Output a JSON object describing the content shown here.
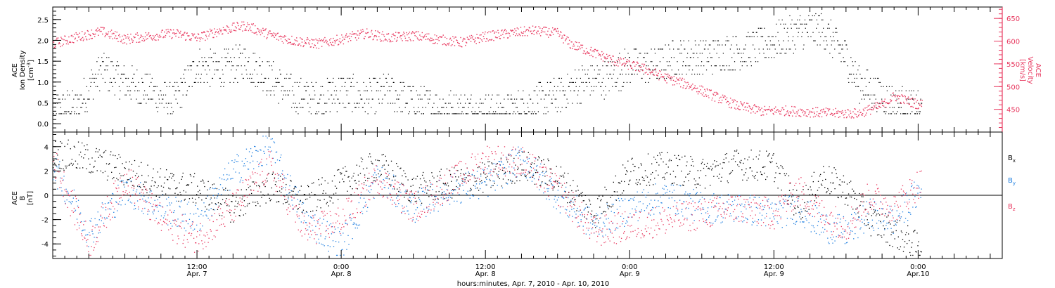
{
  "xlabel": "hours:minutes, Apr.  7, 2010 - Apr. 10, 2010",
  "x_ticks": [
    {
      "t": 12,
      "lines": [
        "12:00",
        "Apr. 7"
      ]
    },
    {
      "t": 24,
      "lines": [
        "0:00",
        "Apr. 8"
      ]
    },
    {
      "t": 36,
      "lines": [
        "12:00",
        "Apr. 8"
      ]
    },
    {
      "t": 48,
      "lines": [
        "0:00",
        "Apr. 9"
      ]
    },
    {
      "t": 60,
      "lines": [
        "12:00",
        "Apr. 9"
      ]
    },
    {
      "t": 72,
      "lines": [
        "0:00",
        "Apr.10"
      ]
    }
  ],
  "colors": {
    "black": "#000000",
    "blue": "#1f7fe0",
    "red": "#e8385f"
  },
  "chart_data": [
    {
      "type": "scatter",
      "title": "",
      "xlim": [
        "2010-04-07 00:00",
        "2010-04-10 07:00"
      ],
      "ylabel_left": [
        "ACE",
        "Ion Density",
        "[cm-3]"
      ],
      "ylabel_right": [
        "ACE",
        "Velocity",
        "[km/s]"
      ],
      "ylim_left": [
        -0.2,
        2.8
      ],
      "yticks_left": [
        0.0,
        0.5,
        1.0,
        1.5,
        2.0,
        2.5
      ],
      "ylim_right": [
        400,
        675
      ],
      "yticks_right": [
        450,
        500,
        550,
        600,
        650
      ],
      "series": [
        {
          "axis": "left",
          "color": "#000000",
          "values_approx": [
            [
              0,
              0.35
            ],
            [
              2,
              0.4
            ],
            [
              4,
              1.3
            ],
            [
              6,
              1.0
            ],
            [
              8,
              0.8
            ],
            [
              10,
              0.5
            ],
            [
              12,
              1.4
            ],
            [
              14,
              1.3
            ],
            [
              16,
              1.5
            ],
            [
              18,
              1.1
            ],
            [
              20,
              0.7
            ],
            [
              22,
              0.6
            ],
            [
              24,
              0.8
            ],
            [
              26,
              0.6
            ],
            [
              28,
              0.8
            ],
            [
              30,
              0.5
            ],
            [
              32,
              0.4
            ],
            [
              34,
              0.35
            ],
            [
              36,
              0.3
            ],
            [
              38,
              0.3
            ],
            [
              40,
              0.5
            ],
            [
              42,
              0.7
            ],
            [
              44,
              1.0
            ],
            [
              46,
              1.1
            ],
            [
              48,
              1.4
            ],
            [
              50,
              1.4
            ],
            [
              52,
              1.6
            ],
            [
              54,
              1.6
            ],
            [
              56,
              1.7
            ],
            [
              58,
              1.8
            ],
            [
              60,
              2.0
            ],
            [
              62,
              2.2
            ],
            [
              64,
              2.3
            ],
            [
              66,
              1.6
            ],
            [
              67,
              1.0
            ],
            [
              68,
              0.8
            ],
            [
              70,
              0.5
            ],
            [
              72,
              0.35
            ]
          ]
        },
        {
          "axis": "right",
          "color": "#e8385f",
          "values_approx": [
            [
              0,
              595
            ],
            [
              2,
              610
            ],
            [
              4,
              622
            ],
            [
              6,
              605
            ],
            [
              8,
              612
            ],
            [
              10,
              618
            ],
            [
              12,
              608
            ],
            [
              14,
              625
            ],
            [
              16,
              635
            ],
            [
              18,
              615
            ],
            [
              20,
              602
            ],
            [
              22,
              595
            ],
            [
              24,
              605
            ],
            [
              26,
              618
            ],
            [
              28,
              608
            ],
            [
              30,
              613
            ],
            [
              32,
              605
            ],
            [
              34,
              598
            ],
            [
              36,
              611
            ],
            [
              38,
              618
            ],
            [
              40,
              624
            ],
            [
              42,
              618
            ],
            [
              43,
              595
            ],
            [
              45,
              575
            ],
            [
              47,
              555
            ],
            [
              49,
              542
            ],
            [
              51,
              520
            ],
            [
              53,
              503
            ],
            [
              55,
              480
            ],
            [
              57,
              458
            ],
            [
              59,
              447
            ],
            [
              61,
              448
            ],
            [
              63,
              445
            ],
            [
              65,
              442
            ],
            [
              67,
              442
            ],
            [
              69,
              460
            ],
            [
              70,
              480
            ],
            [
              71,
              470
            ],
            [
              72,
              462
            ]
          ]
        }
      ]
    },
    {
      "type": "scatter",
      "title": "",
      "xlim": [
        "2010-04-07 00:00",
        "2010-04-10 07:00"
      ],
      "ylabel": [
        "ACE",
        "B",
        "[nT]"
      ],
      "ylim": [
        -5.2,
        5.2
      ],
      "yticks": [
        -4,
        -2,
        0,
        2,
        4
      ],
      "zero_line": true,
      "series": [
        {
          "name": "Bx",
          "color": "#000000",
          "values_approx": [
            [
              0,
              3.5
            ],
            [
              3,
              3.0
            ],
            [
              6,
              2.0
            ],
            [
              9,
              1.0
            ],
            [
              12,
              0.5
            ],
            [
              15,
              -1.0
            ],
            [
              18,
              0.8
            ],
            [
              21,
              -0.5
            ],
            [
              24,
              1.0
            ],
            [
              27,
              2.5
            ],
            [
              30,
              0.5
            ],
            [
              33,
              1.0
            ],
            [
              36,
              1.5
            ],
            [
              39,
              2.5
            ],
            [
              42,
              1.5
            ],
            [
              45,
              -1.5
            ],
            [
              48,
              2.0
            ],
            [
              51,
              2.3
            ],
            [
              54,
              1.8
            ],
            [
              57,
              2.6
            ],
            [
              60,
              2.4
            ],
            [
              62,
              -1.0
            ],
            [
              64,
              1.5
            ],
            [
              66,
              0.5
            ],
            [
              68,
              -2.0
            ],
            [
              70,
              -3.0
            ],
            [
              72,
              -4.3
            ]
          ]
        },
        {
          "name": "By",
          "color": "#1f7fe0",
          "values_approx": [
            [
              0,
              2.5
            ],
            [
              3,
              -3.0
            ],
            [
              6,
              0.5
            ],
            [
              9,
              -1.0
            ],
            [
              12,
              -2.0
            ],
            [
              15,
              2.0
            ],
            [
              18,
              4.0
            ],
            [
              21,
              -2.0
            ],
            [
              24,
              -4.0
            ],
            [
              27,
              1.5
            ],
            [
              30,
              -1.0
            ],
            [
              33,
              0.5
            ],
            [
              36,
              1.0
            ],
            [
              39,
              3.0
            ],
            [
              42,
              0.0
            ],
            [
              45,
              -2.5
            ],
            [
              48,
              -1.0
            ],
            [
              51,
              0.0
            ],
            [
              54,
              -1.0
            ],
            [
              57,
              -1.0
            ],
            [
              60,
              -1.5
            ],
            [
              62,
              -1.0
            ],
            [
              64,
              -2.5
            ],
            [
              66,
              -3.0
            ],
            [
              68,
              -1.5
            ],
            [
              70,
              -2.0
            ],
            [
              72,
              0.3
            ]
          ]
        },
        {
          "name": "Bz",
          "color": "#e8385f",
          "values_approx": [
            [
              0,
              3.0
            ],
            [
              3,
              -4.0
            ],
            [
              6,
              1.5
            ],
            [
              9,
              -2.0
            ],
            [
              12,
              -3.5
            ],
            [
              15,
              -1.0
            ],
            [
              18,
              2.5
            ],
            [
              21,
              -3.0
            ],
            [
              24,
              -2.0
            ],
            [
              27,
              1.5
            ],
            [
              30,
              -1.0
            ],
            [
              33,
              1.0
            ],
            [
              36,
              3.0
            ],
            [
              39,
              2.8
            ],
            [
              42,
              0.5
            ],
            [
              45,
              -3.0
            ],
            [
              48,
              -2.5
            ],
            [
              51,
              -2.0
            ],
            [
              54,
              -1.5
            ],
            [
              57,
              -1.0
            ],
            [
              60,
              -1.5
            ],
            [
              62,
              0.5
            ],
            [
              64,
              -1.5
            ],
            [
              66,
              -2.5
            ],
            [
              68,
              0.0
            ],
            [
              70,
              -1.0
            ],
            [
              72,
              1.0
            ]
          ]
        }
      ]
    }
  ],
  "legend": [
    {
      "main": "B",
      "sub": "x",
      "color": "#000000"
    },
    {
      "main": "B",
      "sub": "y",
      "color": "#1f7fe0"
    },
    {
      "main": "B",
      "sub": "z",
      "color": "#e8385f"
    }
  ]
}
